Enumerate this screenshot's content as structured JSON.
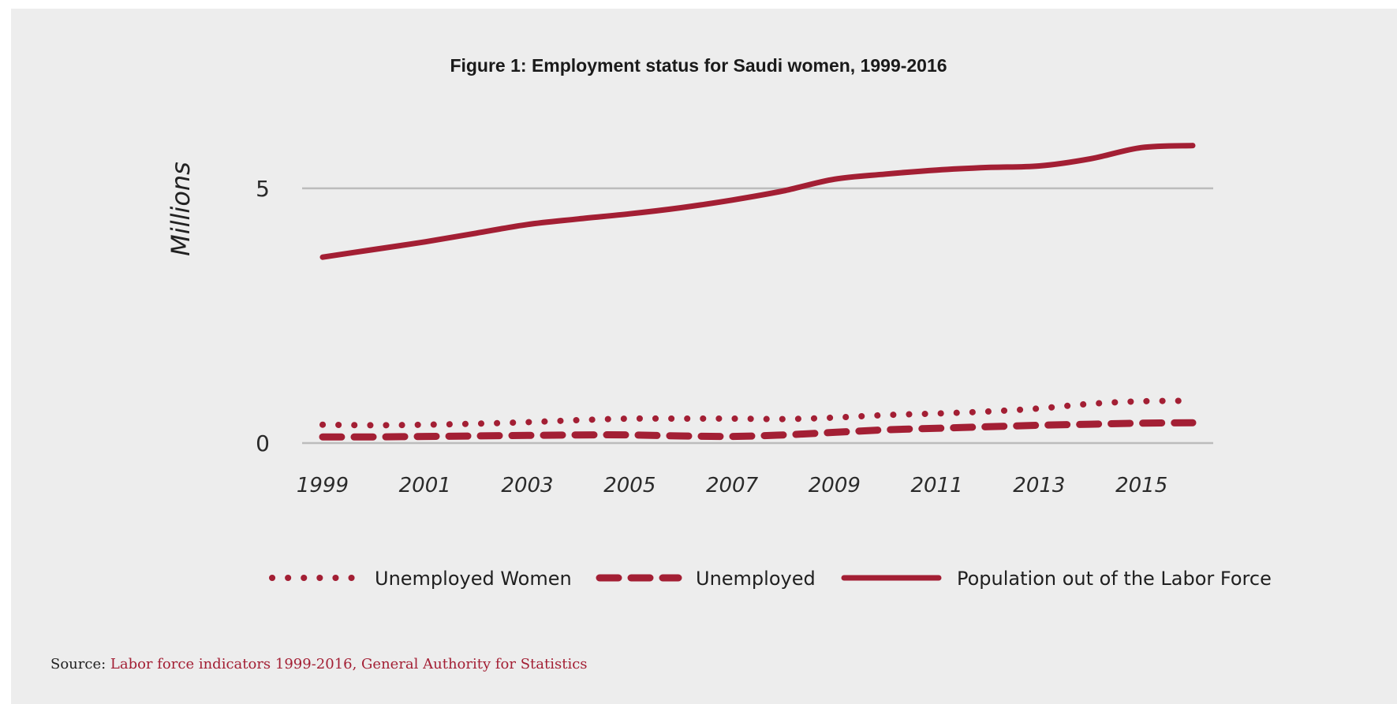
{
  "chart_data": {
    "type": "line",
    "title": "Figure 1: Employment status for Saudi women, 1999-2016",
    "ylabel": "Millions",
    "xlabel": "",
    "x": [
      1999,
      2000,
      2001,
      2002,
      2003,
      2004,
      2005,
      2006,
      2007,
      2008,
      2009,
      2010,
      2011,
      2012,
      2013,
      2014,
      2015,
      2016
    ],
    "xticks": [
      "1999",
      "2001",
      "2003",
      "2005",
      "2007",
      "2009",
      "2011",
      "2013",
      "2015"
    ],
    "yticks": [
      "0",
      "5"
    ],
    "ylim": [
      0,
      6.5
    ],
    "xlim": [
      1998.6,
      2016.4
    ],
    "grid": true,
    "legend_position": "bottom",
    "series": [
      {
        "name": "Unemployed Women",
        "style": "dotted",
        "values": [
          0.36,
          0.35,
          0.36,
          0.38,
          0.41,
          0.45,
          0.48,
          0.48,
          0.48,
          0.47,
          0.5,
          0.55,
          0.58,
          0.62,
          0.68,
          0.77,
          0.82,
          0.83
        ]
      },
      {
        "name": "Unemployed",
        "style": "dashed",
        "values": [
          0.12,
          0.12,
          0.13,
          0.14,
          0.15,
          0.16,
          0.16,
          0.14,
          0.13,
          0.16,
          0.21,
          0.26,
          0.29,
          0.32,
          0.35,
          0.37,
          0.39,
          0.4
        ]
      },
      {
        "name": "Population out of the Labor Force",
        "style": "solid",
        "values": [
          3.65,
          3.8,
          3.95,
          4.12,
          4.29,
          4.4,
          4.5,
          4.62,
          4.77,
          4.95,
          5.18,
          5.28,
          5.36,
          5.41,
          5.44,
          5.58,
          5.8,
          5.84
        ]
      }
    ]
  },
  "colors": {
    "line": "#a31f34",
    "grid": "#bcbcbc",
    "background": "#ededed"
  },
  "source": {
    "prefix": "Source: ",
    "link_text": "Labor force indicators 1999-2016, General Authority for Statistics"
  }
}
